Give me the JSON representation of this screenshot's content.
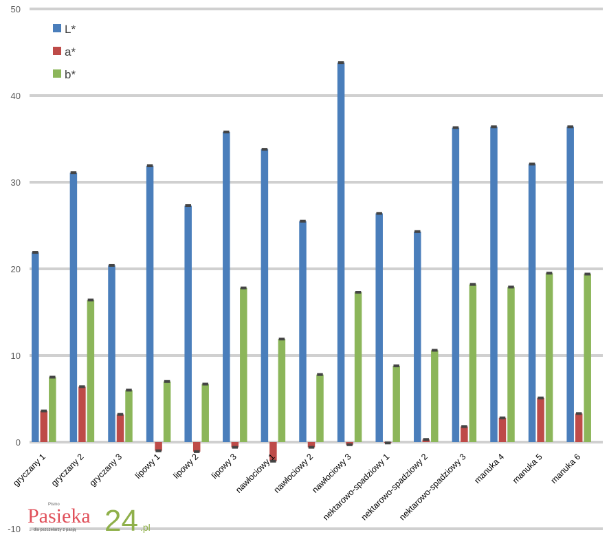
{
  "chart_data": {
    "type": "bar",
    "title": "",
    "xlabel": "",
    "ylabel": "",
    "ylim": [
      -10,
      50
    ],
    "yticks": [
      -10,
      0,
      10,
      20,
      30,
      40,
      50
    ],
    "grid": true,
    "legend_position": "top-left",
    "categories": [
      "gryczany 1",
      "gryczany 2",
      "gryczany 3",
      "lipowy 1",
      "lipowy 2",
      "lipowy 3",
      "nawłociowy 1",
      "nawłociowy 2",
      "nawłociowy 3",
      "nektarowo-spadziowy 1",
      "nektarowo-spadziowy 2",
      "nektarowo-spadziowy 3",
      "manuka 4",
      "manuka 5",
      "manuka 6"
    ],
    "series": [
      {
        "name": "L*",
        "color": "#4a7ebb",
        "values": [
          21.9,
          31.1,
          20.4,
          31.9,
          27.3,
          35.8,
          33.8,
          25.5,
          43.8,
          26.4,
          24.3,
          36.3,
          36.4,
          32.1,
          36.4
        ]
      },
      {
        "name": "a*",
        "color": "#be4b48",
        "values": [
          3.6,
          6.4,
          3.2,
          -1.0,
          -1.1,
          -0.6,
          -2.2,
          -0.6,
          -0.3,
          -0.1,
          0.3,
          1.8,
          2.8,
          5.1,
          3.3
        ]
      },
      {
        "name": "b*",
        "color": "#8cb65a",
        "values": [
          7.5,
          16.4,
          6.0,
          7.0,
          6.7,
          17.8,
          11.9,
          7.8,
          17.3,
          8.8,
          10.6,
          18.2,
          17.9,
          19.5,
          19.4
        ]
      }
    ]
  },
  "logo": {
    "pre": "Pismo",
    "name": "Pasieka",
    "num": "24",
    "tld": ".pl",
    "tagline": "... dla pszczelarzy z pasją"
  }
}
